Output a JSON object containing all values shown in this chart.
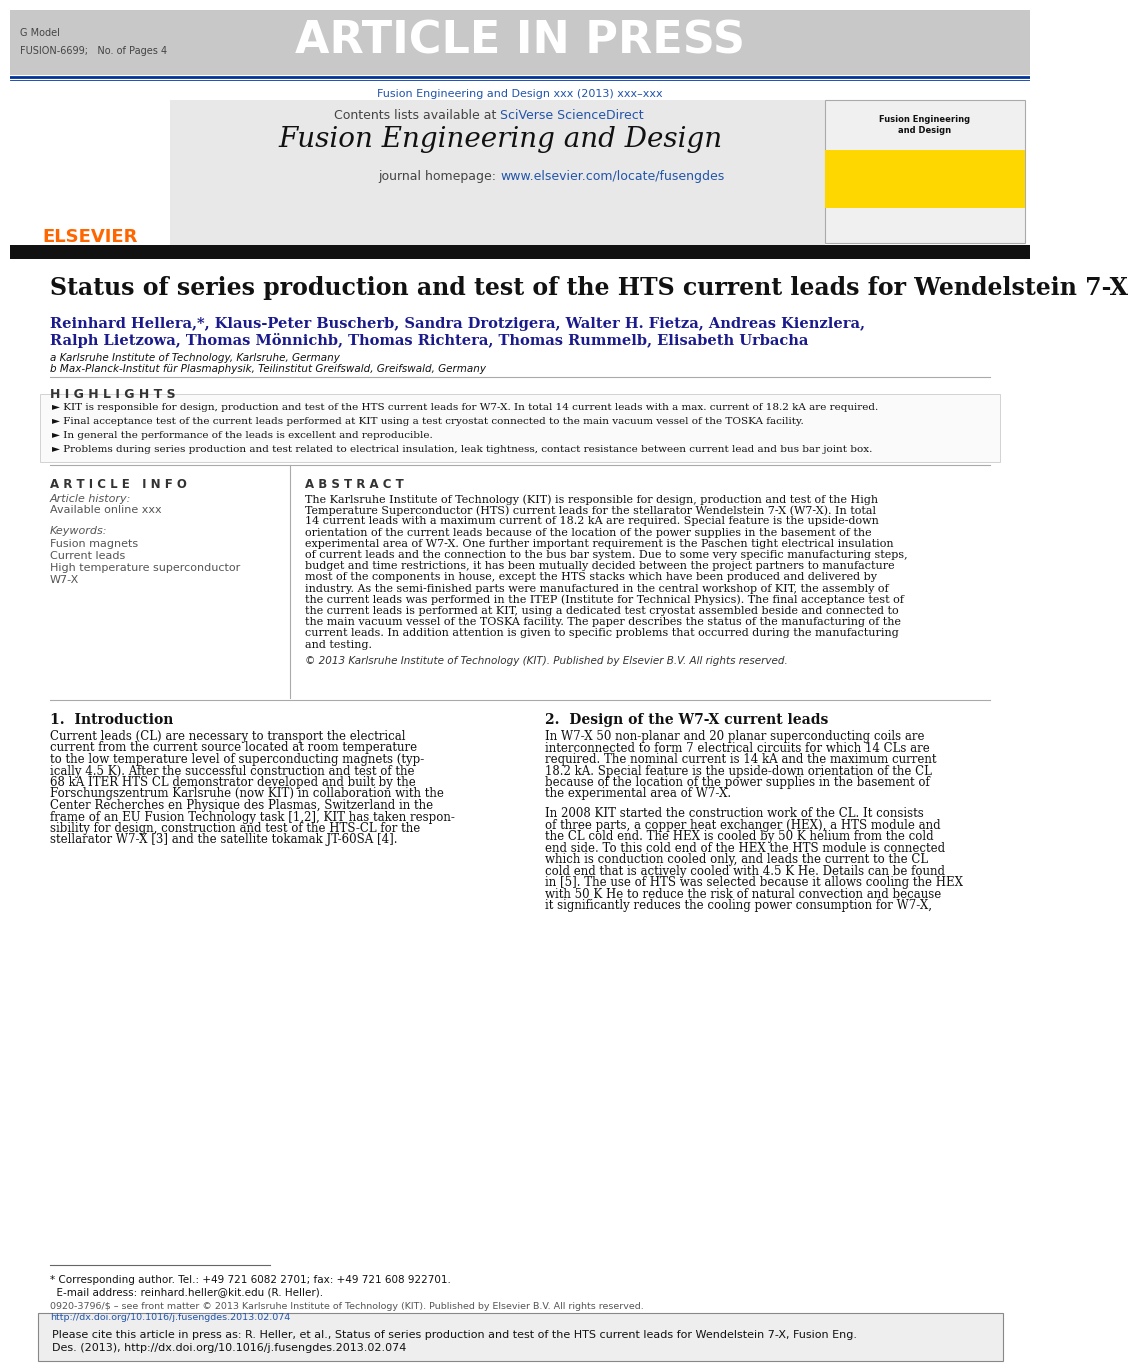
{
  "bg_color": "#ffffff",
  "header_bg": "#c8c8c8",
  "header_text": "ARTICLE IN PRESS",
  "header_small_left1": "G Model",
  "header_small_left2": "FUSION-6699;   No. of Pages 4",
  "journal_subtitle": "Fusion Engineering and Design xxx (2013) xxx–xxx",
  "journal_title": "Fusion Engineering and Design",
  "elsevier_color": "#FF6600",
  "link_color": "#2255aa",
  "article_title": "Status of series production and test of the HTS current leads for Wendelstein 7-X",
  "authors_line1": "Reinhard Hellera,*, Klaus-Peter Buscherb, Sandra Drotzigera, Walter H. Fietza, Andreas Kienzlera,",
  "authors_line2": "Ralph Lietzowa, Thomas Mönnichb, Thomas Richtera, Thomas Rummelb, Elisabeth Urbacha",
  "affil1": "a Karlsruhe Institute of Technology, Karlsruhe, Germany",
  "affil2": "b Max-Planck-Institut für Plasmaphysik, Teilinstitut Greifswald, Greifswald, Germany",
  "highlights_title": "H I G H L I G H T S",
  "highlights": [
    "KIT is responsible for design, production and test of the HTS current leads for W7-X. In total 14 current leads with a max. current of 18.2 kA are required.",
    "Final acceptance test of the current leads performed at KIT using a test cryostat connected to the main vacuum vessel of the TOSKA facility.",
    "In general the performance of the leads is excellent and reproducible.",
    "Problems during series production and test related to electrical insulation, leak tightness, contact resistance between current lead and bus bar joint box."
  ],
  "article_info_title": "A R T I C L E   I N F O",
  "article_history": "Article history:",
  "available": "Available online xxx",
  "keywords_title": "Keywords:",
  "keywords": [
    "Fusion magnets",
    "Current leads",
    "High temperature superconductor",
    "W7-X"
  ],
  "abstract_title": "A B S T R A C T",
  "abstract_text": [
    "The Karlsruhe Institute of Technology (KIT) is responsible for design, production and test of the High",
    "Temperature Superconductor (HTS) current leads for the stellarator Wendelstein 7-X (W7-X). In total",
    "14 current leads with a maximum current of 18.2 kA are required. Special feature is the upside-down",
    "orientation of the current leads because of the location of the power supplies in the basement of the",
    "experimental area of W7-X. One further important requirement is the Paschen tight electrical insulation",
    "of current leads and the connection to the bus bar system. Due to some very specific manufacturing steps,",
    "budget and time restrictions, it has been mutually decided between the project partners to manufacture",
    "most of the components in house, except the HTS stacks which have been produced and delivered by",
    "industry. As the semi-finished parts were manufactured in the central workshop of KIT, the assembly of",
    "the current leads was performed in the ITEP (Institute for Technical Physics). The final acceptance test of",
    "the current leads is performed at KIT, using a dedicated test cryostat assembled beside and connected to",
    "the main vacuum vessel of the TOSKA facility. The paper describes the status of the manufacturing of the",
    "current leads. In addition attention is given to specific problems that occurred during the manufacturing",
    "and testing."
  ],
  "copyright": "© 2013 Karlsruhe Institute of Technology (KIT). Published by Elsevier B.V. All rights reserved.",
  "intro_title": "1.  Introduction",
  "intro_text": [
    "Current leads (CL) are necessary to transport the electrical",
    "current from the current source located at room temperature",
    "to the low temperature level of superconducting magnets (typ-",
    "ically 4.5 K). After the successful construction and test of the",
    "68 kA ITER HTS CL demonstrator developed and built by the",
    "Forschungszentrum Karlsruhe (now KIT) in collaboration with the",
    "Center Recherches en Physique des Plasmas, Switzerland in the",
    "frame of an EU Fusion Technology task [1,2], KIT has taken respon-",
    "sibility for design, construction and test of the HTS-CL for the",
    "stellarator W7-X [3] and the satellite tokamak JT-60SA [4]."
  ],
  "section2_title": "2.  Design of the W7-X current leads",
  "section2_text": [
    "In W7-X 50 non-planar and 20 planar superconducting coils are",
    "interconnected to form 7 electrical circuits for which 14 CLs are",
    "required. The nominal current is 14 kA and the maximum current",
    "18.2 kA. Special feature is the upside-down orientation of the CL",
    "because of the location of the power supplies in the basement of",
    "the experimental area of W7-X.",
    "",
    "In 2008 KIT started the construction work of the CL. It consists",
    "of three parts, a copper heat exchanger (HEX), a HTS module and",
    "the CL cold end. The HEX is cooled by 50 K helium from the cold",
    "end side. To this cold end of the HEX the HTS module is connected",
    "which is conduction cooled only, and leads the current to the CL",
    "cold end that is actively cooled with 4.5 K He. Details can be found",
    "in [5]. The use of HTS was selected because it allows cooling the HEX",
    "with 50 K He to reduce the risk of natural convection and because",
    "it significantly reduces the cooling power consumption for W7-X,"
  ],
  "footnote_line1": "* Corresponding author. Tel.: +49 721 6082 2701; fax: +49 721 608 922701.",
  "footnote_line2": "  E-mail address: reinhard.heller@kit.edu (R. Heller).",
  "issn_line": "0920-3796/$ – see front matter © 2013 Karlsruhe Institute of Technology (KIT). Published by Elsevier B.V. All rights reserved.",
  "doi_line": "http://dx.doi.org/10.1016/j.fusengdes.2013.02.074",
  "citation_line1": "Please cite this article in press as: R. Heller, et al., Status of series production and test of the HTS current leads for Wendelstein 7-X, Fusion Eng.",
  "citation_line2": "Des. (2013), http://dx.doi.org/10.1016/j.fusengdes.2013.02.074"
}
